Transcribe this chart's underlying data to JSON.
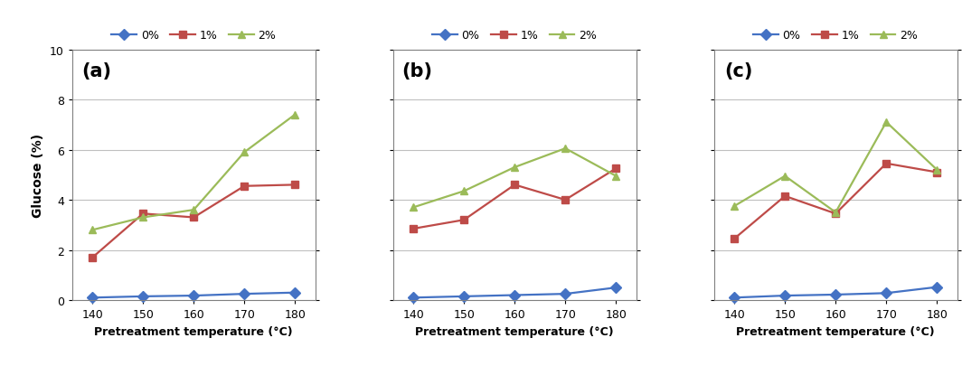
{
  "x": [
    140,
    150,
    160,
    170,
    180
  ],
  "panels": [
    {
      "label": "(a)",
      "series": {
        "0%": [
          0.1,
          0.15,
          0.18,
          0.25,
          0.3
        ],
        "1%": [
          1.7,
          3.45,
          3.3,
          4.55,
          4.6
        ],
        "2%": [
          2.8,
          3.3,
          3.6,
          5.9,
          7.4
        ]
      }
    },
    {
      "label": "(b)",
      "series": {
        "0%": [
          0.1,
          0.15,
          0.2,
          0.25,
          0.5
        ],
        "1%": [
          2.85,
          3.2,
          4.6,
          4.0,
          5.25
        ],
        "2%": [
          3.7,
          4.35,
          5.3,
          6.05,
          4.95
        ]
      }
    },
    {
      "label": "(c)",
      "series": {
        "0%": [
          0.1,
          0.18,
          0.22,
          0.28,
          0.52
        ],
        "1%": [
          2.45,
          4.15,
          3.45,
          5.45,
          5.1
        ],
        "2%": [
          3.75,
          4.95,
          3.5,
          7.1,
          5.2
        ]
      }
    }
  ],
  "colors": {
    "0%": "#4472C4",
    "1%": "#BE4B48",
    "2%": "#9BBB59"
  },
  "markers": {
    "0%": "D",
    "1%": "s",
    "2%": "^"
  },
  "ylim": [
    0,
    10
  ],
  "yticks": [
    0,
    2,
    4,
    6,
    8,
    10
  ],
  "xlabel": "Pretreatment temperature (°C)",
  "ylabel": "Glucose (%)",
  "legend_labels": [
    "0%",
    "1%",
    "2%"
  ],
  "markersize": 6,
  "linewidth": 1.6,
  "grid_color": "#C0C0C0",
  "grid_linewidth": 0.8,
  "bg_color": "#FFFFFF",
  "fig_width": 10.64,
  "fig_height": 4.27,
  "dpi": 100
}
